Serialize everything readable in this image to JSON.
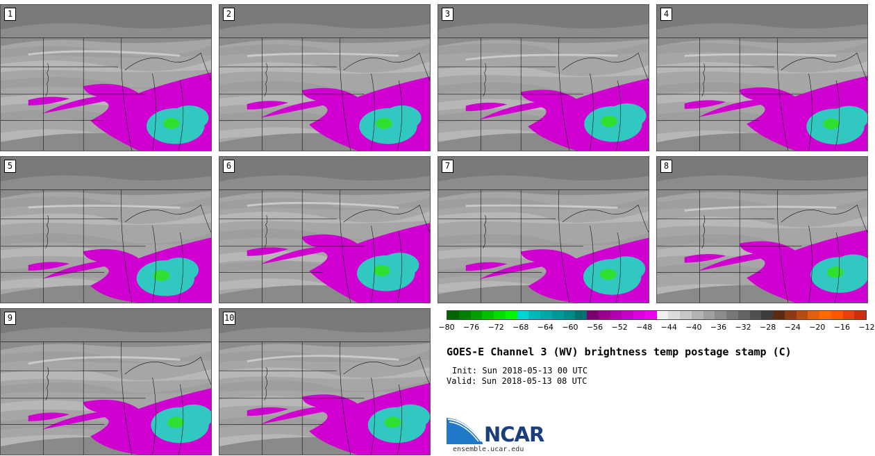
{
  "panels": [
    {
      "label": "1"
    },
    {
      "label": "2"
    },
    {
      "label": "3"
    },
    {
      "label": "4"
    },
    {
      "label": "5"
    },
    {
      "label": "6"
    },
    {
      "label": "7"
    },
    {
      "label": "8"
    },
    {
      "label": "9"
    },
    {
      "label": "10"
    }
  ],
  "colorbar": {
    "colors": [
      "#006400",
      "#007f00",
      "#00a000",
      "#00c000",
      "#00df00",
      "#00f500",
      "#00d6d6",
      "#00b8b8",
      "#00a8a8",
      "#009999",
      "#008a8a",
      "#007070",
      "#7a0070",
      "#990090",
      "#b000b0",
      "#c800c8",
      "#dd00dd",
      "#f000f0",
      "#f0f0f0",
      "#dcdcdc",
      "#c8c8c8",
      "#b4b4b4",
      "#a0a0a0",
      "#8c8c8c",
      "#787878",
      "#646464",
      "#505050",
      "#3c3c3c",
      "#5a2a12",
      "#8b3a14",
      "#b84a14",
      "#e06010",
      "#ff6a00",
      "#ff5500",
      "#e84010",
      "#c83010"
    ],
    "ticks": [
      "−80",
      "−76",
      "−72",
      "−68",
      "−64",
      "−60",
      "−56",
      "−52",
      "−48",
      "−44",
      "−40",
      "−36",
      "−32",
      "−28",
      "−24",
      "−20",
      "−16",
      "−12"
    ]
  },
  "title": "GOES-E Channel 3 (WV) brightness temp postage stamp (C)",
  "init": "Init: Sun 2018-05-13 00 UTC",
  "valid": "Valid: Sun 2018-05-13 08 UTC",
  "logo": {
    "name": "NCAR",
    "url": "ensemble.ucar.edu",
    "color": "#1a3d7c",
    "swoosh_color": "#1f78c8"
  },
  "palette": {
    "magenta": "#d000d0",
    "teal": "#30c8c0",
    "green": "#30e030",
    "gray_light": "#c8c8c8",
    "gray_dark": "#6e6e6e"
  }
}
